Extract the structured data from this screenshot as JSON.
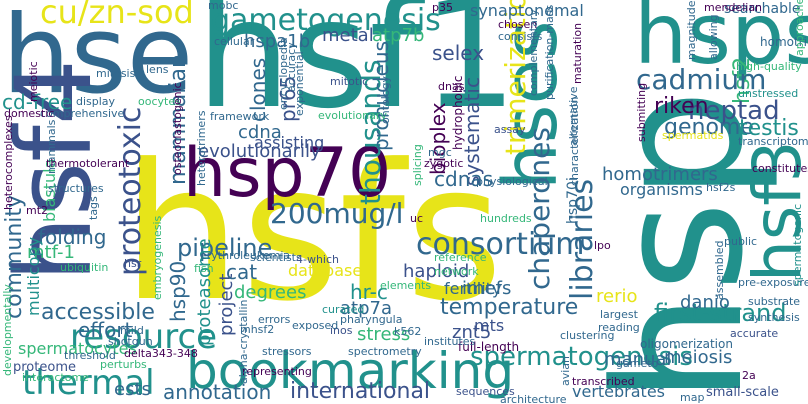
{
  "palette": {
    "purple": "#440154",
    "indigo": "#3b528b",
    "blue": "#31688e",
    "teal": "#21918c",
    "green": "#35b779",
    "lime": "#90d743",
    "yellow": "#e7e419"
  },
  "words": [
    {
      "text": "hsf1"
    },
    {
      "text": "hsfs"
    },
    {
      "text": "hsp"
    },
    {
      "text": "hsps"
    },
    {
      "text": "hse"
    },
    {
      "text": "hsf4"
    },
    {
      "text": "hsp70"
    },
    {
      "text": "hses"
    },
    {
      "text": "bookmarking"
    },
    {
      "text": "hsf3"
    },
    {
      "text": "cu/zn-sod"
    },
    {
      "text": "gametogenesis"
    },
    {
      "text": "hsf2"
    },
    {
      "text": "cadmium"
    },
    {
      "text": "proteotoxic"
    },
    {
      "text": "resource"
    },
    {
      "text": "thermal"
    },
    {
      "text": "200mug/l"
    },
    {
      "text": "thousands"
    },
    {
      "text": "consortium"
    },
    {
      "text": "libraries"
    },
    {
      "text": "chaperones"
    },
    {
      "text": "spermatogenesis"
    },
    {
      "text": "annotation"
    },
    {
      "text": "international"
    },
    {
      "text": "first-strand"
    },
    {
      "text": "trimerization"
    },
    {
      "text": "heptad"
    },
    {
      "text": "riken"
    },
    {
      "text": "genome"
    },
    {
      "text": "testis"
    },
    {
      "text": "community"
    },
    {
      "text": "mammalian"
    },
    {
      "text": "accessible"
    },
    {
      "text": "pipeline"
    },
    {
      "text": "temperature"
    },
    {
      "text": "metal"
    },
    {
      "text": "atp7b"
    },
    {
      "text": "selex"
    },
    {
      "text": "hspa1b"
    },
    {
      "text": "pronucleus"
    },
    {
      "text": "bioplex"
    },
    {
      "text": "systematic"
    },
    {
      "text": "cdnas"
    },
    {
      "text": "homotrimers"
    },
    {
      "text": "organisms"
    },
    {
      "text": "clones"
    },
    {
      "text": "pr65"
    },
    {
      "text": "cdna"
    },
    {
      "text": "evolutionarily"
    },
    {
      "text": "folding"
    },
    {
      "text": "effort"
    },
    {
      "text": "hsp90"
    },
    {
      "text": "proteasome"
    },
    {
      "text": "project"
    },
    {
      "text": "degrees"
    },
    {
      "text": "stress"
    },
    {
      "text": "hr-c"
    },
    {
      "text": "imefs"
    },
    {
      "text": "mts"
    },
    {
      "text": "haploid"
    },
    {
      "text": "danio"
    },
    {
      "text": "rerio"
    },
    {
      "text": "znt5"
    },
    {
      "text": "manual"
    },
    {
      "text": "meiosis"
    },
    {
      "text": "ests"
    },
    {
      "text": "cat"
    },
    {
      "text": "database"
    },
    {
      "text": "atp7a"
    },
    {
      "text": "fertility"
    },
    {
      "text": "cd-free"
    },
    {
      "text": "mtf-1"
    },
    {
      "text": "multicopy"
    },
    {
      "text": "blastula"
    },
    {
      "text": "spermatocytes"
    },
    {
      "text": "synaptonemal"
    },
    {
      "text": "searchable"
    },
    {
      "text": "assisting"
    },
    {
      "text": "homotrimer"
    },
    {
      "text": "mendelian"
    },
    {
      "text": "high-quality"
    },
    {
      "text": "unstressed"
    },
    {
      "text": "hydrophobic"
    },
    {
      "text": "full-length"
    },
    {
      "text": "oligomerization"
    },
    {
      "text": "spectrometry"
    },
    {
      "text": "hsp70i"
    },
    {
      "text": "proteome"
    },
    {
      "text": "shotgun"
    },
    {
      "text": "stressors"
    },
    {
      "text": "characterization"
    },
    {
      "text": "purification-mass"
    },
    {
      "text": "alternative"
    },
    {
      "text": "comprehensive"
    },
    {
      "text": "mitosis"
    },
    {
      "text": "lens"
    },
    {
      "text": "chosen"
    },
    {
      "text": "consists"
    },
    {
      "text": "dnas"
    },
    {
      "text": "mitotic"
    },
    {
      "text": "cellular"
    },
    {
      "text": "encyclopedia"
    },
    {
      "text": "accuracy"
    },
    {
      "text": "exponential"
    },
    {
      "text": "evolutionary"
    },
    {
      "text": "framework"
    },
    {
      "text": "oocytes"
    },
    {
      "text": "meiotic"
    },
    {
      "text": "display"
    },
    {
      "text": "domestic"
    },
    {
      "text": "heterocomplexes"
    },
    {
      "text": "mammals"
    },
    {
      "text": "thermotolerant"
    },
    {
      "text": "structures"
    },
    {
      "text": "tags"
    },
    {
      "text": "mt2"
    },
    {
      "text": "hsr"
    },
    {
      "text": "ubiquitin"
    },
    {
      "text": "erythroleukemia"
    },
    {
      "text": "scientists"
    },
    {
      "text": "fish"
    },
    {
      "text": "4-which"
    },
    {
      "text": "elements"
    },
    {
      "text": "curated"
    },
    {
      "text": "inos"
    },
    {
      "text": "errors"
    },
    {
      "text": "mild"
    },
    {
      "text": "exposed"
    },
    {
      "text": "k562"
    },
    {
      "text": "pharyngula"
    },
    {
      "text": "institutes"
    },
    {
      "text": "reading"
    },
    {
      "text": "largest"
    },
    {
      "text": "accurate"
    },
    {
      "text": "synthesis"
    },
    {
      "text": "substrate"
    },
    {
      "text": "pre-exposure"
    },
    {
      "text": "public"
    },
    {
      "text": "spermatogenic"
    },
    {
      "text": "transcriptome"
    },
    {
      "text": "constitutes"
    },
    {
      "text": "spermatids"
    },
    {
      "text": "submitting"
    },
    {
      "text": "zygotic"
    },
    {
      "text": "mgc"
    },
    {
      "text": "hsf2s"
    },
    {
      "text": "sequences"
    },
    {
      "text": "architecture"
    },
    {
      "text": "transcribed"
    },
    {
      "text": "vertebrates"
    },
    {
      "text": "small-scale"
    },
    {
      "text": "representing"
    },
    {
      "text": "threshold"
    },
    {
      "text": "delta343-348"
    },
    {
      "text": "interactome"
    },
    {
      "text": "perturbs"
    },
    {
      "text": "avian"
    },
    {
      "text": "map"
    },
    {
      "text": "2a"
    },
    {
      "text": "uc"
    },
    {
      "text": "lpo"
    },
    {
      "text": "gameto"
    },
    {
      "text": "ontology"
    },
    {
      "text": "magnitude"
    },
    {
      "text": "allowing"
    },
    {
      "text": "p35"
    },
    {
      "text": "mobc"
    },
    {
      "text": "approaches"
    },
    {
      "text": "developmentally"
    },
    {
      "text": "embryogenesis"
    },
    {
      "text": "mhsf2"
    },
    {
      "text": "osteoclastogenic"
    },
    {
      "text": "heterotrimers"
    },
    {
      "text": "alpha-crystallin"
    },
    {
      "text": "splicing"
    },
    {
      "text": "hundreds"
    },
    {
      "text": "physiological"
    },
    {
      "text": "assembled"
    },
    {
      "text": "clustering"
    },
    {
      "text": "network"
    },
    {
      "text": "reference"
    },
    {
      "text": "maturation"
    },
    {
      "text": "complementary"
    },
    {
      "text": "assay"
    }
  ]
}
